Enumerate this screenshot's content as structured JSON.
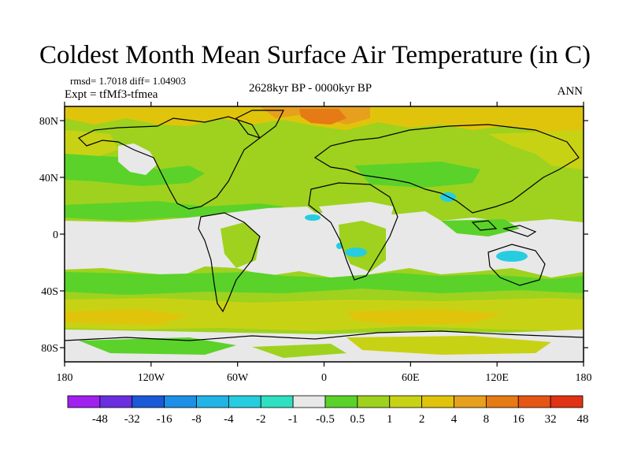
{
  "title": "Coldest Month Mean Surface Air Temperature (in C)",
  "stats": "rmsd= 1.7018 diff= 1.04903",
  "experiment": "Expt = tfMf3-tfmea",
  "period": "2628kyr BP - 0000kyr BP",
  "season": "ANN",
  "map": {
    "projection": "cylindrical equidistant",
    "lon_range": [
      -180,
      180
    ],
    "lat_range": [
      -90,
      90
    ],
    "lat_ticks": [
      {
        "value": 80,
        "label": "80N"
      },
      {
        "value": 40,
        "label": "40N"
      },
      {
        "value": 0,
        "label": "0"
      },
      {
        "value": -40,
        "label": "40S"
      },
      {
        "value": -80,
        "label": "80S"
      }
    ],
    "lon_ticks": [
      {
        "value": -180,
        "label": "180"
      },
      {
        "value": -120,
        "label": "120W"
      },
      {
        "value": -60,
        "label": "60W"
      },
      {
        "value": 0,
        "label": "0"
      },
      {
        "value": 60,
        "label": "60E"
      },
      {
        "value": 120,
        "label": "120E"
      },
      {
        "value": 180,
        "label": "180"
      }
    ]
  },
  "colorbar": {
    "colors": [
      "#a020f0",
      "#6a2ee0",
      "#1a5ad8",
      "#1e8fe6",
      "#22b4e6",
      "#26cde0",
      "#2ee0c0",
      "#e8e8e8",
      "#5ad22a",
      "#9ed21e",
      "#c8d214",
      "#e0c40c",
      "#e6a01e",
      "#e67a14",
      "#e65514",
      "#e03214"
    ],
    "labels": [
      "-48",
      "-32",
      "-16",
      "-8",
      "-4",
      "-2",
      "-1",
      "-0.5",
      "0.5",
      "1",
      "2",
      "4",
      "8",
      "16",
      "32",
      "48"
    ]
  }
}
